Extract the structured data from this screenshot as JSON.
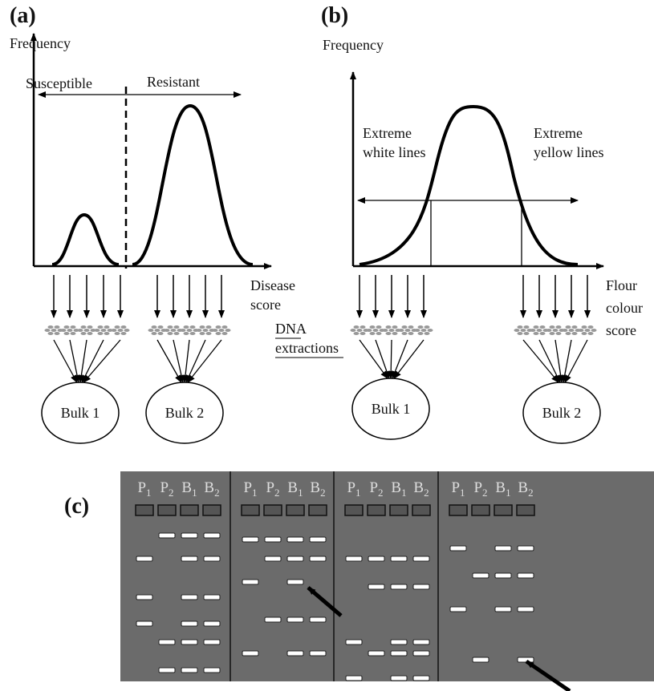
{
  "panel_a": {
    "label": "(a)",
    "y_axis": "Frequency",
    "left_region": "Susceptible",
    "right_region": "Resistant",
    "x_axis": [
      "Disease",
      "score"
    ],
    "bulks": [
      "Bulk 1",
      "Bulk 2"
    ]
  },
  "middle": {
    "note": [
      "DNA",
      "extractions"
    ]
  },
  "panel_b": {
    "label": "(b)",
    "y_axis": "Frequency",
    "left_region": [
      "Extreme",
      "white lines"
    ],
    "right_region": [
      "Extreme",
      "yellow lines"
    ],
    "x_axis": [
      "Flour",
      "colour",
      "score"
    ],
    "bulks": [
      "Bulk 1",
      "Bulk 2"
    ]
  },
  "panel_c": {
    "label": "(c)",
    "lanes": [
      {
        "base": "P",
        "sub": "1"
      },
      {
        "base": "P",
        "sub": "2"
      },
      {
        "base": "B",
        "sub": "1"
      },
      {
        "base": "B",
        "sub": "2"
      }
    ]
  }
}
